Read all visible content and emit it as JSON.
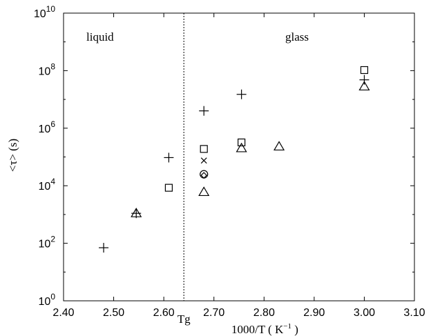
{
  "chart_data": {
    "type": "scatter",
    "xlabel": "1000/T",
    "xlabel_unit": "( K",
    "xlabel_unit_sup": "−1",
    "xlabel_unit_close": ")",
    "ylabel": "<τ> (s)",
    "xlim": [
      2.4,
      3.1
    ],
    "ylim_log10": [
      0,
      10
    ],
    "y_scale": "log",
    "x_ticks": [
      "2.40",
      "2.50",
      "2.60",
      "2.70",
      "2.80",
      "2.90",
      "3.00",
      "3.10"
    ],
    "y_tick_exponents": [
      "0",
      "2",
      "4",
      "6",
      "8",
      "10"
    ],
    "y_tick_base": "10",
    "annotations": {
      "liquid": "liquid",
      "glass": "glass",
      "tg": "Tg"
    },
    "tg_line_x": 2.64,
    "series": [
      {
        "marker": "plus",
        "points": [
          {
            "x": 2.48,
            "y": 70
          },
          {
            "x": 2.545,
            "y": 1100
          },
          {
            "x": 2.61,
            "y": 95000
          },
          {
            "x": 2.68,
            "y": 4000000
          },
          {
            "x": 2.755,
            "y": 15000000
          },
          {
            "x": 3.0,
            "y": 48000000
          }
        ]
      },
      {
        "marker": "square",
        "points": [
          {
            "x": 2.61,
            "y": 8500
          },
          {
            "x": 2.68,
            "y": 190000
          },
          {
            "x": 2.755,
            "y": 320000
          },
          {
            "x": 3.0,
            "y": 105000000
          }
        ]
      },
      {
        "marker": "triangle",
        "points": [
          {
            "x": 2.545,
            "y": 1100
          },
          {
            "x": 2.68,
            "y": 6000
          },
          {
            "x": 2.755,
            "y": 200000
          },
          {
            "x": 2.83,
            "y": 230000
          },
          {
            "x": 3.0,
            "y": 28000000
          }
        ]
      },
      {
        "marker": "cross",
        "points": [
          {
            "x": 2.68,
            "y": 75000
          }
        ]
      },
      {
        "marker": "circle",
        "points": [
          {
            "x": 2.68,
            "y": 25000
          }
        ]
      },
      {
        "marker": "diamond",
        "points": [
          {
            "x": 2.68,
            "y": 23000
          }
        ]
      }
    ]
  }
}
